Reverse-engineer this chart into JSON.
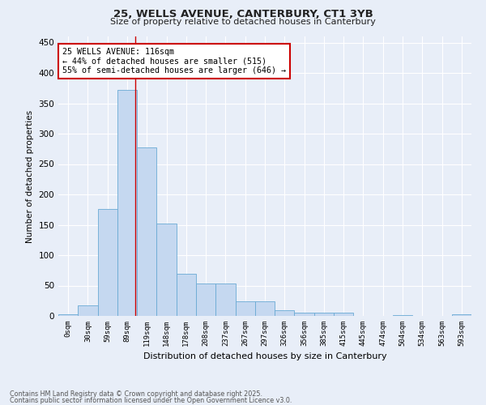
{
  "title_line1": "25, WELLS AVENUE, CANTERBURY, CT1 3YB",
  "title_line2": "Size of property relative to detached houses in Canterbury",
  "xlabel": "Distribution of detached houses by size in Canterbury",
  "ylabel": "Number of detached properties",
  "bar_labels": [
    "0sqm",
    "30sqm",
    "59sqm",
    "89sqm",
    "119sqm",
    "148sqm",
    "178sqm",
    "208sqm",
    "237sqm",
    "267sqm",
    "297sqm",
    "326sqm",
    "356sqm",
    "385sqm",
    "415sqm",
    "445sqm",
    "474sqm",
    "504sqm",
    "534sqm",
    "563sqm",
    "593sqm"
  ],
  "bar_heights": [
    3,
    17,
    176,
    372,
    277,
    152,
    70,
    53,
    53,
    24,
    24,
    9,
    6,
    6,
    6,
    0,
    0,
    2,
    0,
    0,
    3
  ],
  "bar_color": "#c5d8f0",
  "bar_edge_color": "#6aaad4",
  "red_line_x": 3.9,
  "annotation_text": "25 WELLS AVENUE: 116sqm\n← 44% of detached houses are smaller (515)\n55% of semi-detached houses are larger (646) →",
  "annotation_box_color": "#ffffff",
  "annotation_box_edge": "#cc0000",
  "ylim": [
    0,
    460
  ],
  "yticks": [
    0,
    50,
    100,
    150,
    200,
    250,
    300,
    350,
    400,
    450
  ],
  "background_color": "#e8eef8",
  "grid_color": "#ffffff",
  "footer_line1": "Contains HM Land Registry data © Crown copyright and database right 2025.",
  "footer_line2": "Contains public sector information licensed under the Open Government Licence v3.0."
}
